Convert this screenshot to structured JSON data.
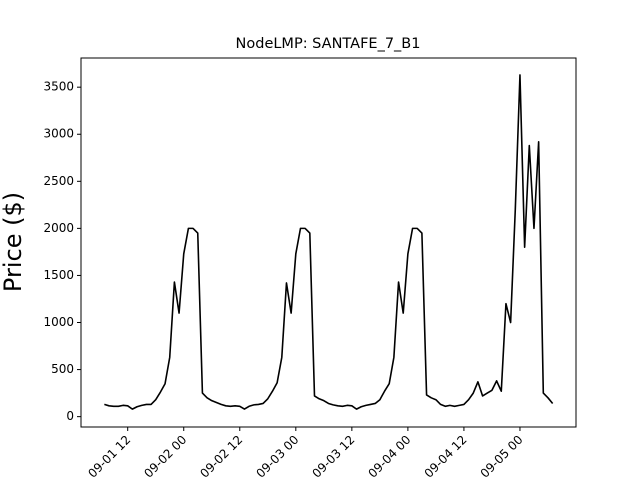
{
  "chart_data": {
    "type": "line",
    "title": "NodeLMP: SANTAFE_7_B1",
    "y_label": "Price ($)",
    "x": [
      "09-01 07",
      "09-01 08",
      "09-01 09",
      "09-01 10",
      "09-01 11",
      "09-01 12",
      "09-01 13",
      "09-01 14",
      "09-01 15",
      "09-01 16",
      "09-01 17",
      "09-01 18",
      "09-01 19",
      "09-01 20",
      "09-01 21",
      "09-01 22",
      "09-01 23",
      "09-02 00",
      "09-02 01",
      "09-02 02",
      "09-02 03",
      "09-02 04",
      "09-02 05",
      "09-02 06",
      "09-02 07",
      "09-02 08",
      "09-02 09",
      "09-02 10",
      "09-02 11",
      "09-02 12",
      "09-02 13",
      "09-02 14",
      "09-02 15",
      "09-02 16",
      "09-02 17",
      "09-02 18",
      "09-02 19",
      "09-02 20",
      "09-02 21",
      "09-02 22",
      "09-02 23",
      "09-03 00",
      "09-03 01",
      "09-03 02",
      "09-03 03",
      "09-03 04",
      "09-03 05",
      "09-03 06",
      "09-03 07",
      "09-03 08",
      "09-03 09",
      "09-03 10",
      "09-03 11",
      "09-03 12",
      "09-03 13",
      "09-03 14",
      "09-03 15",
      "09-03 16",
      "09-03 17",
      "09-03 18",
      "09-03 19",
      "09-03 20",
      "09-03 21",
      "09-03 22",
      "09-03 23",
      "09-04 00",
      "09-04 01",
      "09-04 02",
      "09-04 03",
      "09-04 04",
      "09-04 05",
      "09-04 06",
      "09-04 07",
      "09-04 08",
      "09-04 09",
      "09-04 10",
      "09-04 11",
      "09-04 12",
      "09-04 13",
      "09-04 14",
      "09-04 15",
      "09-04 16",
      "09-04 17",
      "09-04 18",
      "09-04 19",
      "09-04 20",
      "09-04 21",
      "09-04 22",
      "09-04 23",
      "09-05 00",
      "09-05 01",
      "09-05 02",
      "09-05 03",
      "09-05 04",
      "09-05 05",
      "09-05 06",
      "09-05 07"
    ],
    "series": [
      {
        "name": "SANTAFE_7_B1",
        "color": "#000000",
        "values": [
          130,
          115,
          110,
          110,
          120,
          115,
          80,
          105,
          120,
          130,
          130,
          180,
          260,
          350,
          630,
          1430,
          1100,
          1730,
          2000,
          2000,
          1950,
          250,
          200,
          170,
          150,
          130,
          115,
          110,
          115,
          110,
          80,
          110,
          125,
          130,
          140,
          190,
          270,
          360,
          630,
          1420,
          1100,
          1730,
          2000,
          2000,
          1950,
          220,
          190,
          170,
          140,
          125,
          115,
          110,
          120,
          115,
          80,
          105,
          120,
          130,
          140,
          180,
          270,
          350,
          630,
          1430,
          1100,
          1730,
          2000,
          2000,
          1950,
          230,
          200,
          180,
          130,
          110,
          120,
          110,
          120,
          130,
          180,
          250,
          370,
          220,
          250,
          280,
          380,
          270,
          1200,
          1000,
          2200,
          3630,
          1800,
          2880,
          2000,
          2920,
          250,
          200,
          140
        ]
      }
    ],
    "xlim": [
      "09-01 02",
      "09-05 12"
    ],
    "xticks": [
      "09-01 12",
      "09-02 00",
      "09-02 12",
      "09-03 00",
      "09-03 12",
      "09-04 00",
      "09-04 12",
      "09-05 00"
    ],
    "ylim": [
      -110,
      3810
    ],
    "yticks": [
      0,
      500,
      1000,
      1500,
      2000,
      2500,
      3000,
      3500
    ]
  }
}
